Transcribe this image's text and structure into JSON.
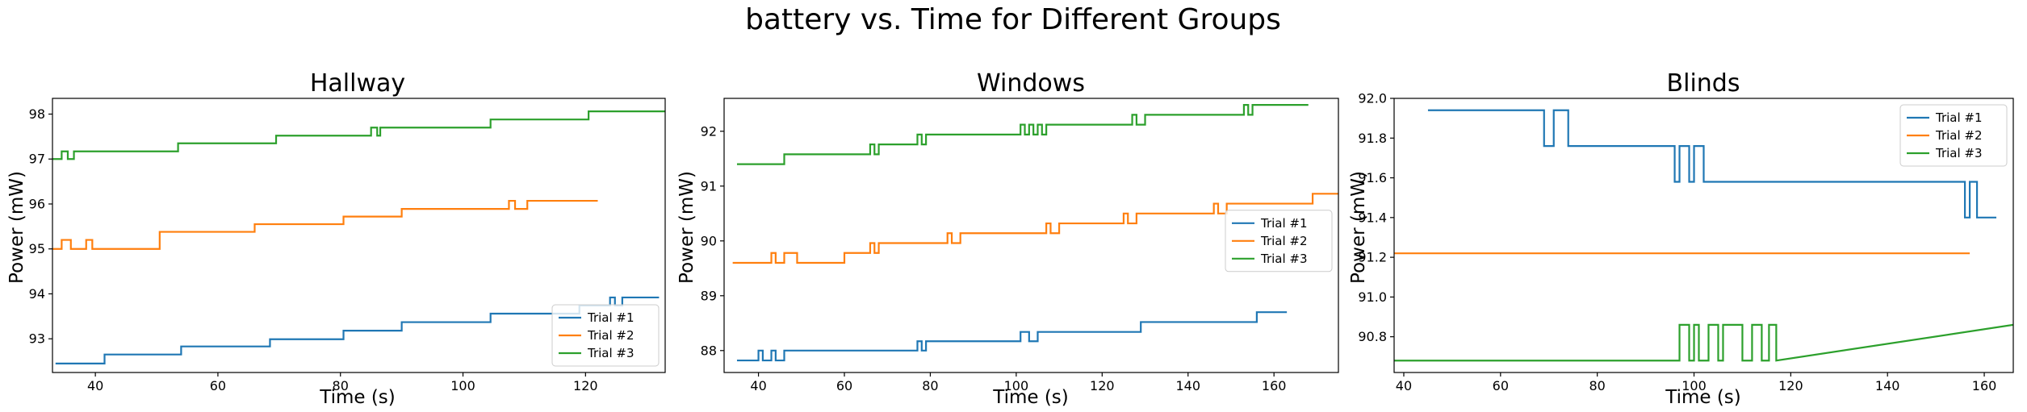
{
  "figure": {
    "suptitle": "battery vs. Time for Different Groups"
  },
  "colors": {
    "Trial #1": "#1f77b4",
    "Trial #2": "#ff7f0e",
    "Trial #3": "#2ca02c"
  },
  "chart_data": [
    {
      "type": "line",
      "title": "Hallway",
      "xlabel": "Time (s)",
      "ylabel": "Power (mW)",
      "xlim": [
        33,
        133
      ],
      "ylim": [
        92.25,
        98.35
      ],
      "xticks": [
        40,
        60,
        80,
        100,
        120
      ],
      "yticks": [
        93,
        94,
        95,
        96,
        97,
        98
      ],
      "legend": "lower-right",
      "series": [
        {
          "name": "Trial #1",
          "x": [
            33.5,
            41.5,
            41.5,
            54,
            54,
            68.5,
            68.5,
            80.5,
            80.5,
            90,
            90,
            104.5,
            104.5,
            119,
            119,
            124,
            124,
            124.8,
            124.8,
            126,
            126,
            132
          ],
          "y": [
            92.45,
            92.45,
            92.65,
            92.65,
            92.83,
            92.83,
            92.99,
            92.99,
            93.18,
            93.18,
            93.37,
            93.37,
            93.56,
            93.56,
            93.74,
            93.74,
            93.92,
            93.92,
            93.74,
            93.74,
            93.92,
            93.92
          ]
        },
        {
          "name": "Trial #2",
          "x": [
            33,
            34.5,
            34.5,
            36,
            36,
            38.5,
            38.5,
            39.5,
            39.5,
            50.5,
            50.5,
            66,
            66,
            80.5,
            80.5,
            90,
            90,
            107.5,
            107.5,
            108.5,
            108.5,
            110.5,
            110.5,
            122
          ],
          "y": [
            95.0,
            95.0,
            95.2,
            95.2,
            95.0,
            95.0,
            95.2,
            95.2,
            95.0,
            95.0,
            95.38,
            95.38,
            95.55,
            95.55,
            95.72,
            95.72,
            95.89,
            95.89,
            96.07,
            96.07,
            95.89,
            95.89,
            96.07,
            96.07
          ]
        },
        {
          "name": "Trial #3",
          "x": [
            33,
            34.5,
            34.5,
            35.5,
            35.5,
            36.5,
            36.5,
            38,
            38,
            53.5,
            53.5,
            69.5,
            69.5,
            85,
            85,
            86,
            86,
            86.5,
            86.5,
            87.5,
            87.5,
            104.5,
            104.5,
            120.5,
            120.5,
            133
          ],
          "y": [
            97.0,
            97.0,
            97.17,
            97.17,
            97.0,
            97.0,
            97.17,
            97.17,
            97.17,
            97.17,
            97.35,
            97.35,
            97.52,
            97.52,
            97.7,
            97.7,
            97.52,
            97.52,
            97.7,
            97.7,
            97.7,
            97.7,
            97.88,
            97.88,
            98.06,
            98.06
          ]
        }
      ]
    },
    {
      "type": "line",
      "title": "Windows",
      "xlabel": "Time (s)",
      "ylabel": "Power (mW)",
      "xlim": [
        32,
        175
      ],
      "ylim": [
        87.6,
        92.6
      ],
      "xticks": [
        40,
        60,
        80,
        100,
        120,
        140,
        160
      ],
      "yticks": [
        88,
        89,
        90,
        91,
        92
      ],
      "legend": "center-right",
      "series": [
        {
          "name": "Trial #1",
          "x": [
            35,
            40,
            40,
            41,
            41,
            43,
            43,
            44,
            44,
            46,
            46,
            77,
            77,
            78,
            78,
            79,
            79,
            101,
            101,
            103,
            103,
            105,
            105,
            107,
            107,
            129,
            129,
            156,
            156,
            163
          ],
          "y": [
            87.82,
            87.82,
            88.0,
            88.0,
            87.82,
            87.82,
            88.0,
            88.0,
            87.82,
            87.82,
            88.0,
            88.0,
            88.17,
            88.17,
            88.0,
            88.0,
            88.17,
            88.17,
            88.34,
            88.34,
            88.17,
            88.17,
            88.34,
            88.34,
            88.34,
            88.34,
            88.52,
            88.52,
            88.7,
            88.7
          ]
        },
        {
          "name": "Trial #2",
          "x": [
            34,
            43,
            43,
            44,
            44,
            46,
            46,
            49,
            49,
            60,
            60,
            66,
            66,
            67,
            67,
            68,
            68,
            84,
            84,
            85,
            85,
            87,
            87,
            107,
            107,
            108,
            108,
            110,
            110,
            125,
            125,
            126,
            126,
            128,
            128,
            146,
            146,
            147,
            147,
            149,
            149,
            169,
            169,
            175
          ],
          "y": [
            89.6,
            89.6,
            89.78,
            89.78,
            89.6,
            89.6,
            89.78,
            89.78,
            89.6,
            89.6,
            89.78,
            89.78,
            89.96,
            89.96,
            89.78,
            89.78,
            89.96,
            89.96,
            90.14,
            90.14,
            89.96,
            89.96,
            90.14,
            90.14,
            90.32,
            90.32,
            90.14,
            90.14,
            90.32,
            90.32,
            90.5,
            90.5,
            90.32,
            90.32,
            90.5,
            90.5,
            90.68,
            90.68,
            90.5,
            90.5,
            90.68,
            90.68,
            90.86,
            90.86
          ]
        },
        {
          "name": "Trial #3",
          "x": [
            35,
            46,
            46,
            66,
            66,
            67,
            67,
            68,
            68,
            77,
            77,
            78,
            78,
            79,
            79,
            101,
            101,
            102,
            102,
            103,
            103,
            104,
            104,
            105,
            105,
            106,
            106,
            107,
            107,
            127,
            127,
            128,
            128,
            130,
            130,
            153,
            153,
            154,
            154,
            155,
            155,
            168
          ],
          "y": [
            91.4,
            91.4,
            91.58,
            91.58,
            91.76,
            91.76,
            91.58,
            91.58,
            91.76,
            91.76,
            91.94,
            91.94,
            91.76,
            91.76,
            91.94,
            91.94,
            92.12,
            92.12,
            91.94,
            91.94,
            92.12,
            92.12,
            91.94,
            91.94,
            92.12,
            92.12,
            91.94,
            91.94,
            92.12,
            92.12,
            92.3,
            92.3,
            92.12,
            92.12,
            92.3,
            92.3,
            92.48,
            92.48,
            92.3,
            92.3,
            92.48,
            92.48
          ]
        }
      ]
    },
    {
      "type": "line",
      "title": "Blinds",
      "xlabel": "Time (s)",
      "ylabel": "Power (mW)",
      "xlim": [
        38,
        166
      ],
      "ylim": [
        90.62,
        92.0
      ],
      "xticks": [
        40,
        60,
        80,
        100,
        120,
        140,
        160
      ],
      "yticks": [
        90.8,
        91.0,
        91.2,
        91.4,
        91.6,
        91.8,
        92.0
      ],
      "legend": "top-right",
      "series": [
        {
          "name": "Trial #1",
          "x": [
            45,
            69,
            69,
            71,
            71,
            74,
            74,
            75.5,
            75.5,
            96,
            96,
            97,
            97,
            99,
            99,
            100,
            100,
            102,
            102,
            104,
            104,
            156,
            156,
            157,
            157,
            158.5,
            158.5,
            160,
            160,
            162.5
          ],
          "y": [
            91.94,
            91.94,
            91.76,
            91.76,
            91.94,
            91.94,
            91.76,
            91.76,
            91.76,
            91.76,
            91.58,
            91.58,
            91.76,
            91.76,
            91.58,
            91.58,
            91.76,
            91.76,
            91.58,
            91.58,
            91.58,
            91.58,
            91.4,
            91.4,
            91.58,
            91.58,
            91.4,
            91.4,
            91.4,
            91.4
          ]
        },
        {
          "name": "Trial #2",
          "x": [
            38,
            157
          ],
          "y": [
            91.22,
            91.22
          ]
        },
        {
          "name": "Trial #3",
          "x": [
            38,
            97,
            97,
            99,
            99,
            100,
            100,
            101,
            101,
            103,
            103,
            105,
            105,
            106,
            106,
            110,
            110,
            112,
            112,
            114,
            114,
            115.5,
            115.5,
            117,
            117,
            166
          ],
          "y": [
            90.68,
            90.68,
            90.86,
            90.86,
            90.68,
            90.68,
            90.86,
            90.86,
            90.68,
            90.68,
            90.86,
            90.86,
            90.68,
            90.68,
            90.86,
            90.86,
            90.68,
            90.68,
            90.86,
            90.86,
            90.68,
            90.68,
            90.86,
            90.86,
            90.68,
            90.86
          ]
        }
      ]
    }
  ]
}
